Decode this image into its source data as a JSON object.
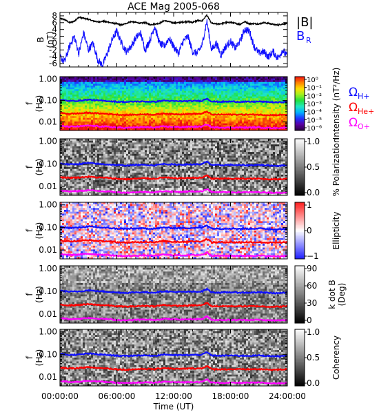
{
  "colors": {
    "black": "#000000",
    "blue": "#1010ff",
    "red": "#ff0000",
    "magenta": "#ff00ff"
  },
  "chart_data": {
    "title": "ACE Mag 2005-068",
    "xlabel": "Time (UT)",
    "xlim_hours": [
      0,
      24
    ],
    "x_ticks": [
      "00:00:00",
      "06:00:00",
      "12:00:00",
      "18:00:00",
      "24:00:00"
    ],
    "panels": [
      {
        "id": "field",
        "type": "line",
        "ylabel_top": "B",
        "ylabel_bottom": "(nT)",
        "ylim": [
          -7,
          9
        ],
        "y_ticks": [
          "8",
          "6",
          "4",
          "2",
          "0",
          "-2",
          "-4",
          "-6"
        ],
        "legend": [
          {
            "label": "|B|",
            "color": "#000000"
          },
          {
            "label": "B",
            "subscript": "R",
            "color": "#1010ff"
          }
        ],
        "series": [
          {
            "name": "|B|",
            "color": "#000000",
            "x": [
              0,
              0.5,
              1,
              1.5,
              2,
              2.5,
              3,
              3.5,
              4,
              4.5,
              5,
              5.5,
              6,
              6.5,
              7,
              7.5,
              8,
              8.5,
              9,
              9.5,
              10,
              10.5,
              11,
              11.5,
              12,
              12.5,
              13,
              13.5,
              14,
              14.5,
              15,
              15.5,
              16,
              16.5,
              17,
              17.5,
              18,
              18.5,
              19,
              19.5,
              20,
              20.5,
              21,
              21.5,
              22,
              22.5,
              23,
              23.5,
              24
            ],
            "y": [
              7.2,
              6.9,
              6.0,
              6.4,
              7.6,
              7.3,
              7.0,
              6.5,
              6.2,
              6.4,
              6.2,
              5.9,
              5.7,
              5.3,
              5.8,
              6.3,
              6.1,
              5.8,
              6.0,
              5.4,
              5.6,
              5.8,
              6.6,
              6.3,
              5.9,
              6.0,
              6.2,
              6.3,
              6.1,
              6.6,
              6.5,
              8.2,
              5.8,
              5.6,
              5.7,
              6.0,
              6.1,
              5.8,
              5.5,
              6.3,
              5.7,
              5.7,
              5.6,
              6.0,
              5.8,
              5.5,
              5.3,
              5.6,
              5.8
            ]
          },
          {
            "name": "B_R",
            "color": "#1010ff",
            "x": [
              0,
              0.5,
              1,
              1.5,
              2,
              2.5,
              3,
              3.5,
              4,
              4.5,
              5,
              5.5,
              6,
              6.5,
              7,
              7.5,
              8,
              8.5,
              9,
              9.5,
              10,
              10.5,
              11,
              11.5,
              12,
              12.5,
              13,
              13.5,
              14,
              14.5,
              15,
              15.5,
              16,
              16.5,
              17,
              17.5,
              18,
              18.5,
              19,
              19.5,
              20,
              20.5,
              21,
              21.5,
              22,
              22.5,
              23,
              23.5,
              24
            ],
            "y": [
              -4,
              -5.5,
              -1,
              2,
              -3,
              3,
              -2,
              0,
              -5,
              -6.5,
              -3,
              1,
              3.5,
              0,
              -2.5,
              -1,
              1.5,
              3,
              -2,
              1,
              5,
              0,
              -1,
              1.5,
              -1,
              -3,
              0.5,
              2,
              -2.5,
              -3,
              -0.5,
              6.5,
              -2,
              0,
              -3.5,
              -1,
              0.5,
              -1.5,
              0.5,
              4,
              3.5,
              -1,
              -3,
              -2.5,
              -4,
              -2.5,
              -4.5,
              -2,
              -4
            ]
          }
        ]
      },
      {
        "id": "intensity",
        "type": "heatmap",
        "ylabel_top": "f",
        "ylabel_bottom": "(Hz)",
        "y_scale": "log",
        "ylim": [
          0.004,
          1.3
        ],
        "y_ticks": [
          "1.00",
          "0.10",
          "0.01"
        ],
        "colorbar": {
          "label": "Intensity (nT²/Hz)",
          "ticks": [
            "10⁰",
            "10⁻¹",
            "10⁻²",
            "10⁻³",
            "10⁻⁴",
            "10⁻⁵",
            "10⁻⁶"
          ],
          "range": [
            -6.3,
            0.3
          ],
          "colors": [
            "#2a0040",
            "#5a00a0",
            "#2030ff",
            "#00b0ff",
            "#20e8c0",
            "#20e040",
            "#a0f020",
            "#ffe000",
            "#ff8000",
            "#f01010"
          ]
        },
        "gyrofrequency_labels": [
          {
            "symbol": "Ω",
            "sub": "H+",
            "color": "#1010ff"
          },
          {
            "symbol": "Ω",
            "sub": "He+",
            "color": "#ff0000"
          },
          {
            "symbol": "Ω",
            "sub": "O+",
            "color": "#ff00ff"
          }
        ]
      },
      {
        "id": "polarization",
        "type": "heatmap",
        "ylabel_top": "f",
        "ylabel_bottom": "(Hz)",
        "y_scale": "log",
        "y_ticks": [
          "1.00",
          "0.10",
          "0.01"
        ],
        "colorbar": {
          "label": "% Polarization",
          "ticks": [
            "1.0",
            "0.5",
            "0.0"
          ],
          "range": [
            0,
            1
          ]
        }
      },
      {
        "id": "ellipticity",
        "type": "heatmap",
        "ylabel_top": "f",
        "ylabel_bottom": "(Hz)",
        "y_scale": "log",
        "y_ticks": [
          "1.00",
          "0.10",
          "0.01"
        ],
        "colorbar": {
          "label": "Ellipticity",
          "ticks": [
            "1",
            "0",
            "−1"
          ],
          "range": [
            -1,
            1
          ]
        }
      },
      {
        "id": "kdotb",
        "type": "heatmap",
        "ylabel_top": "f",
        "ylabel_bottom": "(Hz)",
        "y_scale": "log",
        "y_ticks": [
          "1.00",
          "0.10",
          "0.01"
        ],
        "colorbar": {
          "label_top": "k dot B",
          "label_bottom": "(Deg)",
          "ticks": [
            "90",
            "60",
            "30",
            "0"
          ],
          "range": [
            0,
            90
          ]
        }
      },
      {
        "id": "coherency",
        "type": "heatmap",
        "ylabel_top": "f",
        "ylabel_bottom": "(Hz)",
        "y_scale": "log",
        "y_ticks": [
          "1.00",
          "0.10",
          "0.01"
        ],
        "colorbar": {
          "label": "Coherency",
          "ticks": [
            "1.0",
            "0.5",
            "0.0"
          ],
          "range": [
            0,
            1
          ]
        }
      }
    ],
    "gyrofrequencies_hz": {
      "x": [
        0,
        1,
        2,
        3,
        4,
        5,
        6,
        7,
        8,
        9,
        10,
        11,
        12,
        13,
        14,
        15,
        15.5,
        16,
        17,
        18,
        19,
        20,
        21,
        22,
        23,
        24
      ],
      "H+": [
        0.105,
        0.095,
        0.098,
        0.11,
        0.1,
        0.095,
        0.088,
        0.085,
        0.09,
        0.09,
        0.087,
        0.1,
        0.093,
        0.093,
        0.095,
        0.097,
        0.125,
        0.09,
        0.087,
        0.09,
        0.087,
        0.087,
        0.09,
        0.085,
        0.082,
        0.087
      ],
      "He+": [
        0.026,
        0.024,
        0.025,
        0.027,
        0.025,
        0.024,
        0.022,
        0.021,
        0.022,
        0.023,
        0.022,
        0.025,
        0.023,
        0.023,
        0.024,
        0.024,
        0.031,
        0.022,
        0.022,
        0.022,
        0.022,
        0.022,
        0.022,
        0.021,
        0.021,
        0.022
      ],
      "O+": [
        0.0066,
        0.006,
        0.0062,
        0.0068,
        0.0063,
        0.006,
        0.0055,
        0.0053,
        0.0056,
        0.0057,
        0.0055,
        0.0062,
        0.0058,
        0.0058,
        0.006,
        0.006,
        0.0078,
        0.0056,
        0.0055,
        0.0055,
        0.0055,
        0.0055,
        0.0056,
        0.0053,
        0.0052,
        0.0055
      ]
    }
  }
}
